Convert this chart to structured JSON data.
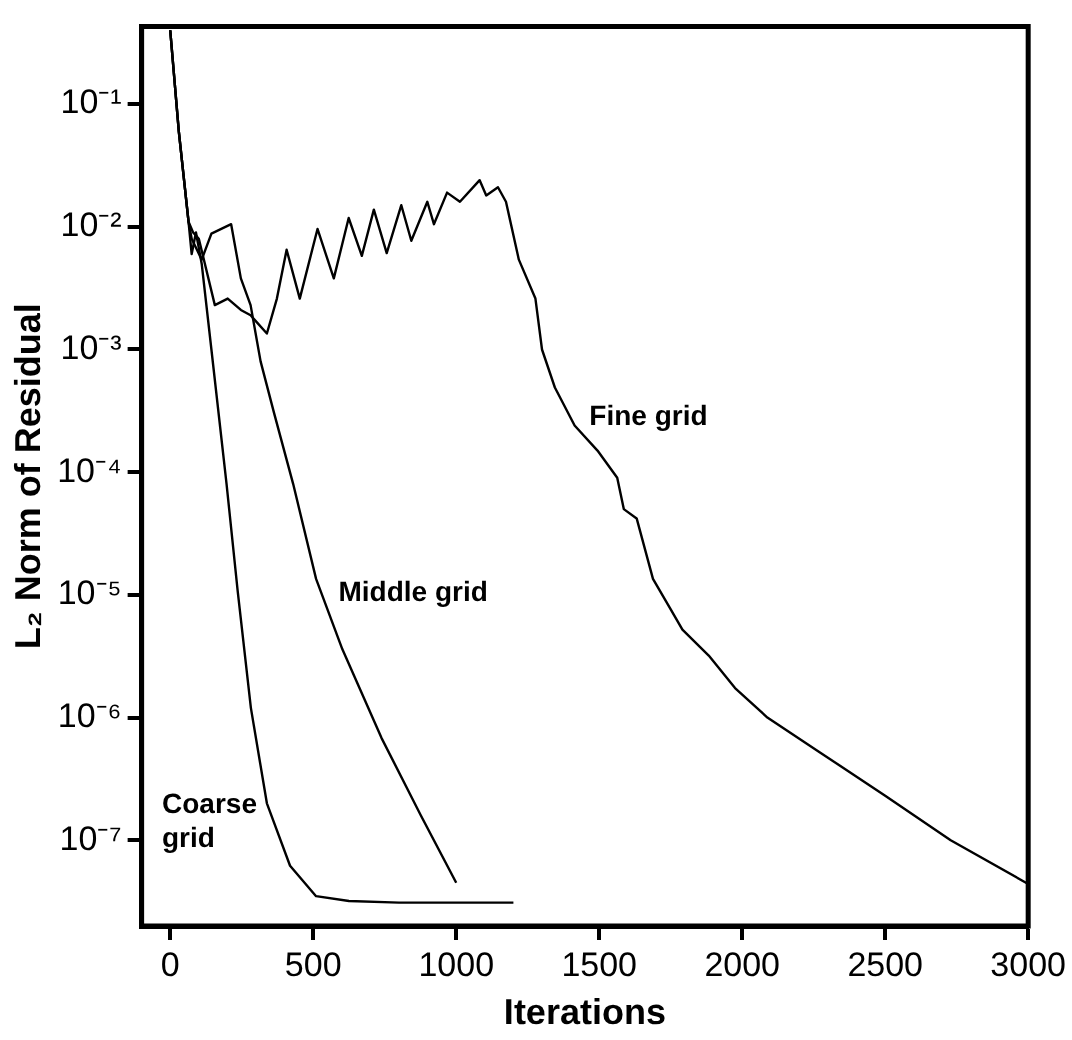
{
  "chart_data": {
    "type": "line",
    "xlabel": "Iterations",
    "ylabel": "L₂ Norm of Residual",
    "log": "y",
    "grid": false,
    "legend": false,
    "marker": "none",
    "line_style": "solid",
    "xlim": [
      -100,
      3000
    ],
    "xticks": [
      0,
      500,
      1000,
      1500,
      2000,
      2500,
      3000
    ],
    "ylim": [
      2e-08,
      0.43
    ],
    "yticks": [
      {
        "value": 1e-07,
        "label": "10⁻⁷"
      },
      {
        "value": 1e-06,
        "label": "10⁻⁶"
      },
      {
        "value": 1e-05,
        "label": "10⁻⁵"
      },
      {
        "value": 0.0001,
        "label": "10⁻⁴"
      },
      {
        "value": 0.001,
        "label": "10⁻³"
      },
      {
        "value": 0.01,
        "label": "10⁻²"
      },
      {
        "value": 0.1,
        "label": "10⁻¹"
      }
    ],
    "series": [
      {
        "name": "Coarse grid",
        "color": "#000000",
        "x": [
          0,
          30,
          64,
          75,
          90,
          110,
          144,
          197,
          236,
          282,
          338,
          419,
          510,
          625,
          800,
          1000,
          1200
        ],
        "values": [
          0.4,
          0.06,
          0.011,
          0.006,
          0.009,
          0.005,
          0.001,
          8e-05,
          1.07e-05,
          1.2e-06,
          2e-07,
          6.2e-08,
          3.5e-08,
          3.2e-08,
          3.1e-08,
          3.1e-08,
          3.1e-08
        ]
      },
      {
        "name": "Middle grid",
        "color": "#000000",
        "x": [
          0,
          30,
          64,
          75,
          110,
          144,
          213,
          247,
          281,
          316,
          362,
          430,
          510,
          602,
          739,
          876,
          1000
        ],
        "values": [
          0.4,
          0.06,
          0.011,
          0.008,
          0.0054,
          0.0088,
          0.0105,
          0.0038,
          0.0023,
          0.0008,
          0.00031,
          8e-05,
          1.35e-05,
          3.6e-06,
          6.8e-07,
          1.6e-07,
          4.5e-08
        ]
      },
      {
        "name": "Fine grid",
        "color": "#000000",
        "x": [
          0,
          30,
          64,
          80,
          100,
          156,
          201,
          247,
          281,
          338,
          373,
          407,
          453,
          515,
          572,
          624,
          670,
          712,
          757,
          808,
          843,
          899,
          922,
          968,
          1013,
          1082,
          1105,
          1146,
          1174,
          1219,
          1277,
          1300,
          1345,
          1414,
          1494,
          1563,
          1586,
          1631,
          1688,
          1746,
          1791,
          1883,
          1975,
          2088,
          2272,
          2500,
          2729,
          3000
        ],
        "values": [
          0.4,
          0.06,
          0.011,
          0.009,
          0.008,
          0.0023,
          0.0026,
          0.0021,
          0.0019,
          0.00135,
          0.0026,
          0.0065,
          0.0026,
          0.0096,
          0.0038,
          0.0118,
          0.0058,
          0.0138,
          0.0061,
          0.015,
          0.0077,
          0.016,
          0.0105,
          0.019,
          0.016,
          0.024,
          0.018,
          0.021,
          0.016,
          0.0054,
          0.0026,
          0.001,
          0.00049,
          0.00024,
          0.00015,
          9e-05,
          5e-05,
          4.2e-05,
          1.35e-05,
          7.9e-06,
          5.2e-06,
          3.2e-06,
          1.74e-06,
          1e-06,
          5.2e-07,
          2.3e-07,
          1e-07,
          4.4e-08
        ]
      }
    ]
  }
}
